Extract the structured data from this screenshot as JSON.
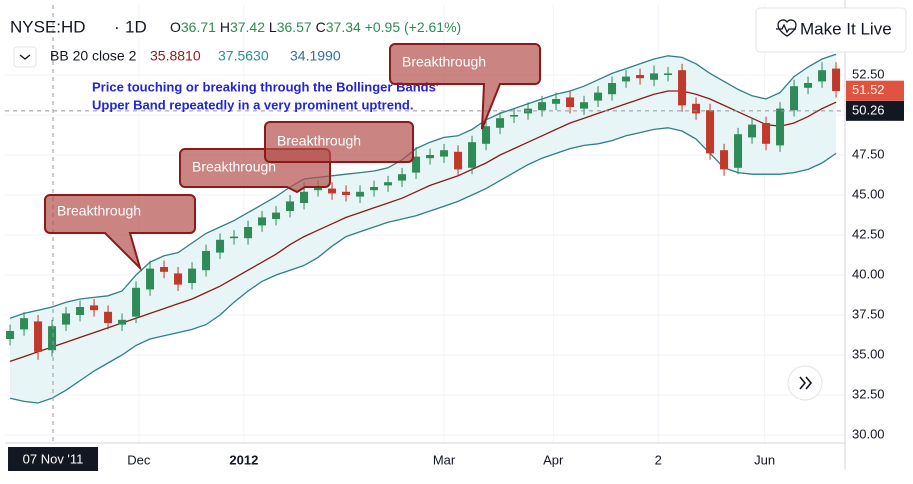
{
  "header": {
    "symbol": "NYSE:HD",
    "interval": "1D",
    "ohlc": [
      {
        "label": "O",
        "value": "36.71"
      },
      {
        "label": "H",
        "value": "37.42"
      },
      {
        "label": "L",
        "value": "36.57"
      },
      {
        "label": "C",
        "value": "37.34"
      },
      {
        "label": "",
        "value": "+0.95 (+2.61%)"
      }
    ],
    "indicator": {
      "label": "BB 20 close 2",
      "values": [
        "35.8810",
        "37.5630",
        "34.1990"
      ]
    },
    "button": "Make It Live"
  },
  "chart_data": {
    "type": "candlestick",
    "note": [
      "Price touching or breaking through the Bollinger Bands'",
      "Upper Band repeatedly in a very prominent uptrend."
    ],
    "callouts": [
      "Breakthrough",
      "Breakthrough",
      "Breakthrough",
      "Breakthrough"
    ],
    "x": [
      0,
      1,
      2,
      3,
      4,
      5,
      6,
      7,
      8,
      9,
      10,
      11,
      12,
      13,
      14,
      15,
      16,
      17,
      18,
      19,
      20,
      21,
      22,
      23,
      24,
      25,
      26,
      27,
      28,
      29,
      30,
      31,
      32,
      33,
      34,
      35,
      36,
      37,
      38,
      39,
      40,
      41,
      42,
      43,
      44,
      45,
      46,
      47,
      48,
      49,
      50,
      51,
      52,
      53,
      54,
      55,
      56,
      57,
      58,
      59
    ],
    "open": [
      36.0,
      36.6,
      37.1,
      35.3,
      36.9,
      37.5,
      38.1,
      37.7,
      36.9,
      37.4,
      39.1,
      40.5,
      40.1,
      39.5,
      40.3,
      41.4,
      42.3,
      42.3,
      43.1,
      43.5,
      44.0,
      44.5,
      45.3,
      45.4,
      45.2,
      44.9,
      45.3,
      45.6,
      45.9,
      46.4,
      47.3,
      47.4,
      47.7,
      46.7,
      48.2,
      49.2,
      49.9,
      50.1,
      50.3,
      50.7,
      51.1,
      50.4,
      50.9,
      51.3,
      52.1,
      52.5,
      52.2,
      52.5,
      52.8,
      50.7,
      50.3,
      47.8,
      46.7,
      48.6,
      49.5,
      48.1,
      50.3,
      51.7,
      52.1,
      52.9
    ],
    "high": [
      36.9,
      37.7,
      37.5,
      37.2,
      38.0,
      38.4,
      38.5,
      38.1,
      37.6,
      39.6,
      40.9,
      40.9,
      40.5,
      40.8,
      41.9,
      42.6,
      42.8,
      43.4,
      44.0,
      44.3,
      45.0,
      45.8,
      45.9,
      45.8,
      45.6,
      45.6,
      45.9,
      46.2,
      46.7,
      48.0,
      47.9,
      48.2,
      48.1,
      48.7,
      49.7,
      50.2,
      50.4,
      50.8,
      51.2,
      51.4,
      51.5,
      51.2,
      51.8,
      52.4,
      52.8,
      52.9,
      53.1,
      53.0,
      53.2,
      51.1,
      50.7,
      48.2,
      49.2,
      49.8,
      49.9,
      50.8,
      52.2,
      52.4,
      53.3,
      53.3
    ],
    "low": [
      35.6,
      36.2,
      34.7,
      34.9,
      36.5,
      37.1,
      37.4,
      36.6,
      36.5,
      37.0,
      38.7,
      39.8,
      39.0,
      39.1,
      39.9,
      41.0,
      41.9,
      41.9,
      42.7,
      43.1,
      43.6,
      44.1,
      44.9,
      44.7,
      44.6,
      44.5,
      44.9,
      45.2,
      45.5,
      46.0,
      46.9,
      47.0,
      46.2,
      46.3,
      47.8,
      48.8,
      49.5,
      49.7,
      49.9,
      50.3,
      50.1,
      50.0,
      50.5,
      50.9,
      51.7,
      51.9,
      51.8,
      52.1,
      50.2,
      49.7,
      47.2,
      46.2,
      46.3,
      48.2,
      47.8,
      47.7,
      49.9,
      51.3,
      51.7,
      51.1
    ],
    "close": [
      36.5,
      37.3,
      35.2,
      36.8,
      37.6,
      38.0,
      37.8,
      37.0,
      37.2,
      39.2,
      40.4,
      40.2,
      39.4,
      40.4,
      41.5,
      42.2,
      42.4,
      43.0,
      43.6,
      43.9,
      44.6,
      45.2,
      45.5,
      45.1,
      45.0,
      45.2,
      45.5,
      45.8,
      46.3,
      47.4,
      47.5,
      47.8,
      46.6,
      48.3,
      49.3,
      49.8,
      50.0,
      50.4,
      50.8,
      51.0,
      50.5,
      50.8,
      51.4,
      52.0,
      52.4,
      52.3,
      52.6,
      52.6,
      50.6,
      50.1,
      47.6,
      46.6,
      48.8,
      49.4,
      48.2,
      50.4,
      51.8,
      52.0,
      52.8,
      51.5
    ],
    "up_color": "#2e8b57",
    "down_color": "#c0392b",
    "series": [
      {
        "color": "#8b1a1a",
        "values": [
          34.6,
          34.9,
          35.2,
          35.5,
          35.8,
          36.1,
          36.4,
          36.7,
          37.0,
          37.3,
          37.6,
          37.9,
          38.2,
          38.5,
          38.9,
          39.3,
          39.8,
          40.3,
          40.8,
          41.3,
          41.9,
          42.4,
          42.8,
          43.2,
          43.6,
          43.9,
          44.2,
          44.5,
          44.8,
          45.2,
          45.6,
          45.9,
          46.2,
          46.6,
          47.0,
          47.5,
          47.9,
          48.3,
          48.7,
          49.1,
          49.5,
          49.8,
          50.1,
          50.4,
          50.7,
          51.0,
          51.3,
          51.5,
          51.5,
          51.3,
          51.0,
          50.6,
          50.2,
          49.8,
          49.4,
          49.3,
          49.5,
          49.9,
          50.4,
          50.8
        ]
      },
      {
        "color": "#2f7f86",
        "values": [
          37.3,
          37.6,
          37.8,
          38.0,
          38.3,
          38.5,
          38.6,
          38.7,
          39.0,
          40.0,
          40.8,
          41.2,
          41.4,
          42.0,
          42.6,
          43.0,
          43.4,
          43.9,
          44.4,
          44.9,
          45.5,
          46.0,
          46.1,
          46.2,
          46.3,
          46.4,
          46.5,
          46.7,
          47.2,
          47.9,
          48.3,
          48.6,
          48.7,
          49.1,
          49.7,
          50.1,
          50.4,
          50.7,
          51.0,
          51.3,
          51.5,
          51.8,
          52.2,
          52.6,
          52.9,
          53.2,
          53.5,
          53.7,
          53.6,
          53.2,
          52.6,
          52.1,
          51.6,
          51.2,
          51.0,
          51.4,
          52.4,
          53.0,
          53.5,
          53.8
        ]
      },
      {
        "color": "#2f7f86",
        "values": [
          32.3,
          32.1,
          32.0,
          32.3,
          32.8,
          33.4,
          34.0,
          34.5,
          35.0,
          35.6,
          36.0,
          36.2,
          36.4,
          36.6,
          36.9,
          37.5,
          38.3,
          39.0,
          39.6,
          40.0,
          40.3,
          40.6,
          41.1,
          41.8,
          42.4,
          42.7,
          43.0,
          43.3,
          43.5,
          43.7,
          44.0,
          44.3,
          44.6,
          45.0,
          45.4,
          45.9,
          46.4,
          46.9,
          47.3,
          47.6,
          47.9,
          48.1,
          48.2,
          48.4,
          48.7,
          48.9,
          49.1,
          49.2,
          49.0,
          48.5,
          47.6,
          46.7,
          46.4,
          46.3,
          46.3,
          46.3,
          46.4,
          46.6,
          47.0,
          47.6
        ]
      }
    ],
    "band_fill": "#e8f5f6",
    "xlim": [
      -0.36,
      59.64
    ],
    "ylim": [
      29.5,
      56.875
    ],
    "xticks": [
      {
        "value": 9.2,
        "label": "Dec"
      },
      {
        "value": 16.7,
        "label": "2012"
      },
      {
        "value": 31,
        "label": "Mar"
      },
      {
        "value": 38.8,
        "label": "Apr"
      },
      {
        "value": 46.3,
        "label": "2"
      },
      {
        "value": 53.9,
        "label": "Jun"
      }
    ],
    "yticks": [
      {
        "value": 30,
        "label": "30.00"
      },
      {
        "value": 32.5,
        "label": "32.50"
      },
      {
        "value": 35,
        "label": "35.00"
      },
      {
        "value": 37.5,
        "label": "37.50"
      },
      {
        "value": 40,
        "label": "40.00"
      },
      {
        "value": 42.5,
        "label": "42.50"
      },
      {
        "value": 45,
        "label": "45.00"
      },
      {
        "value": 47.5,
        "label": "47.50"
      },
      {
        "value": 50,
        "label": "50.00"
      },
      {
        "value": 52.5,
        "label": "52.50"
      }
    ],
    "grid": true,
    "crosshair": {
      "x": {
        "value": 3.07,
        "label": "07 Nov '11"
      },
      "y": {
        "value": 50.26,
        "label": "50.26"
      }
    },
    "last_price": {
      "value": 51.52,
      "label": "51.52",
      "color": "#e0533e"
    }
  }
}
